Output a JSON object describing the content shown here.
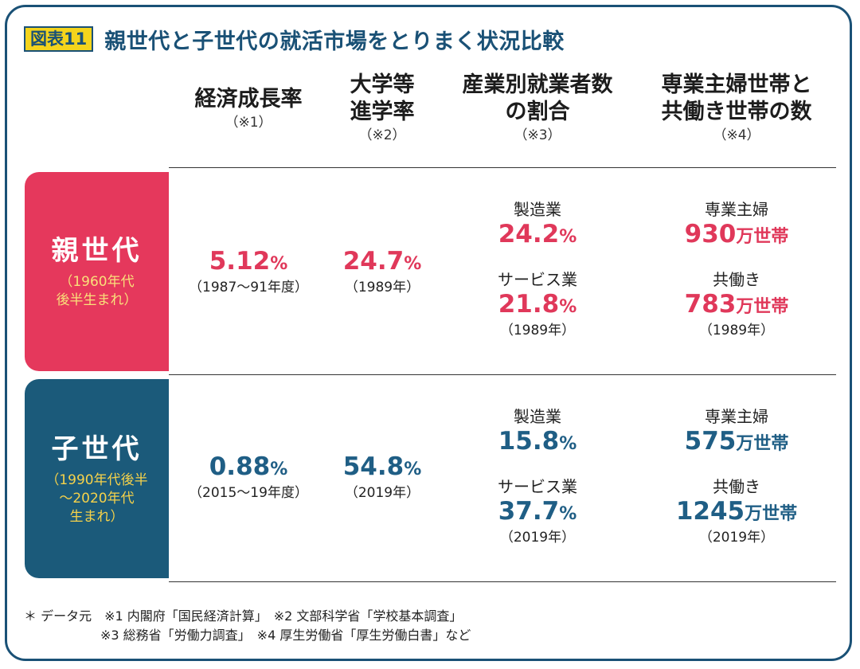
{
  "header": {
    "fig_label": "図表11",
    "title": "親世代と子世代の就活市場をとりまく状況比較"
  },
  "columns": [
    {
      "h1": "経済成長率",
      "h2": "",
      "note": "（※1）"
    },
    {
      "h1": "大学等",
      "h2": "進学率",
      "note": "（※2）"
    },
    {
      "h1": "産業別就業者数",
      "h2": "の割合",
      "note": "（※3）"
    },
    {
      "h1": "専業主婦世帯と",
      "h2": "共働き世帯の数",
      "note": "（※4）"
    }
  ],
  "rows": {
    "parent": {
      "label": "親世代",
      "sub1": "（1960年代",
      "sub2": "後半生まれ）",
      "growth": {
        "value": "5.12",
        "unit": "%",
        "note": "（1987～91年度）"
      },
      "college": {
        "value": "24.7",
        "unit": "%",
        "note": "（1989年）"
      },
      "industry": {
        "label1": "製造業",
        "value1": "24.2",
        "unit1": "%",
        "label2": "サービス業",
        "value2": "21.8",
        "unit2": "%",
        "note": "（1989年）"
      },
      "households": {
        "label1": "専業主婦",
        "value1": "930",
        "unit1": "万世帯",
        "label2": "共働き",
        "value2": "783",
        "unit2": "万世帯",
        "note": "（1989年）"
      }
    },
    "child": {
      "label": "子世代",
      "sub1": "（1990年代後半",
      "sub2": "～2020年代",
      "sub3": "生まれ）",
      "growth": {
        "value": "0.88",
        "unit": "%",
        "note": "（2015～19年度）"
      },
      "college": {
        "value": "54.8",
        "unit": "%",
        "note": "（2019年）"
      },
      "industry": {
        "label1": "製造業",
        "value1": "15.8",
        "unit1": "%",
        "label2": "サービス業",
        "value2": "37.7",
        "unit2": "%",
        "note": "（2019年）"
      },
      "households": {
        "label1": "専業主婦",
        "value1": "575",
        "unit1": "万世帯",
        "label2": "共働き",
        "value2": "1245",
        "unit2": "万世帯",
        "note": "（2019年）"
      }
    }
  },
  "footer": {
    "line1": "＊ データ元　※1 内閣府「国民経済計算」　※2 文部科学省「学校基本調査」",
    "line2": "　　　　　　※3 総務省「労働力調査」　※4 厚生労働省「厚生労働白書」など"
  },
  "colors": {
    "frame": "#1a5176",
    "parent": "#e5385c",
    "child": "#1b5a7a",
    "label_bg": "#f4d41c"
  }
}
